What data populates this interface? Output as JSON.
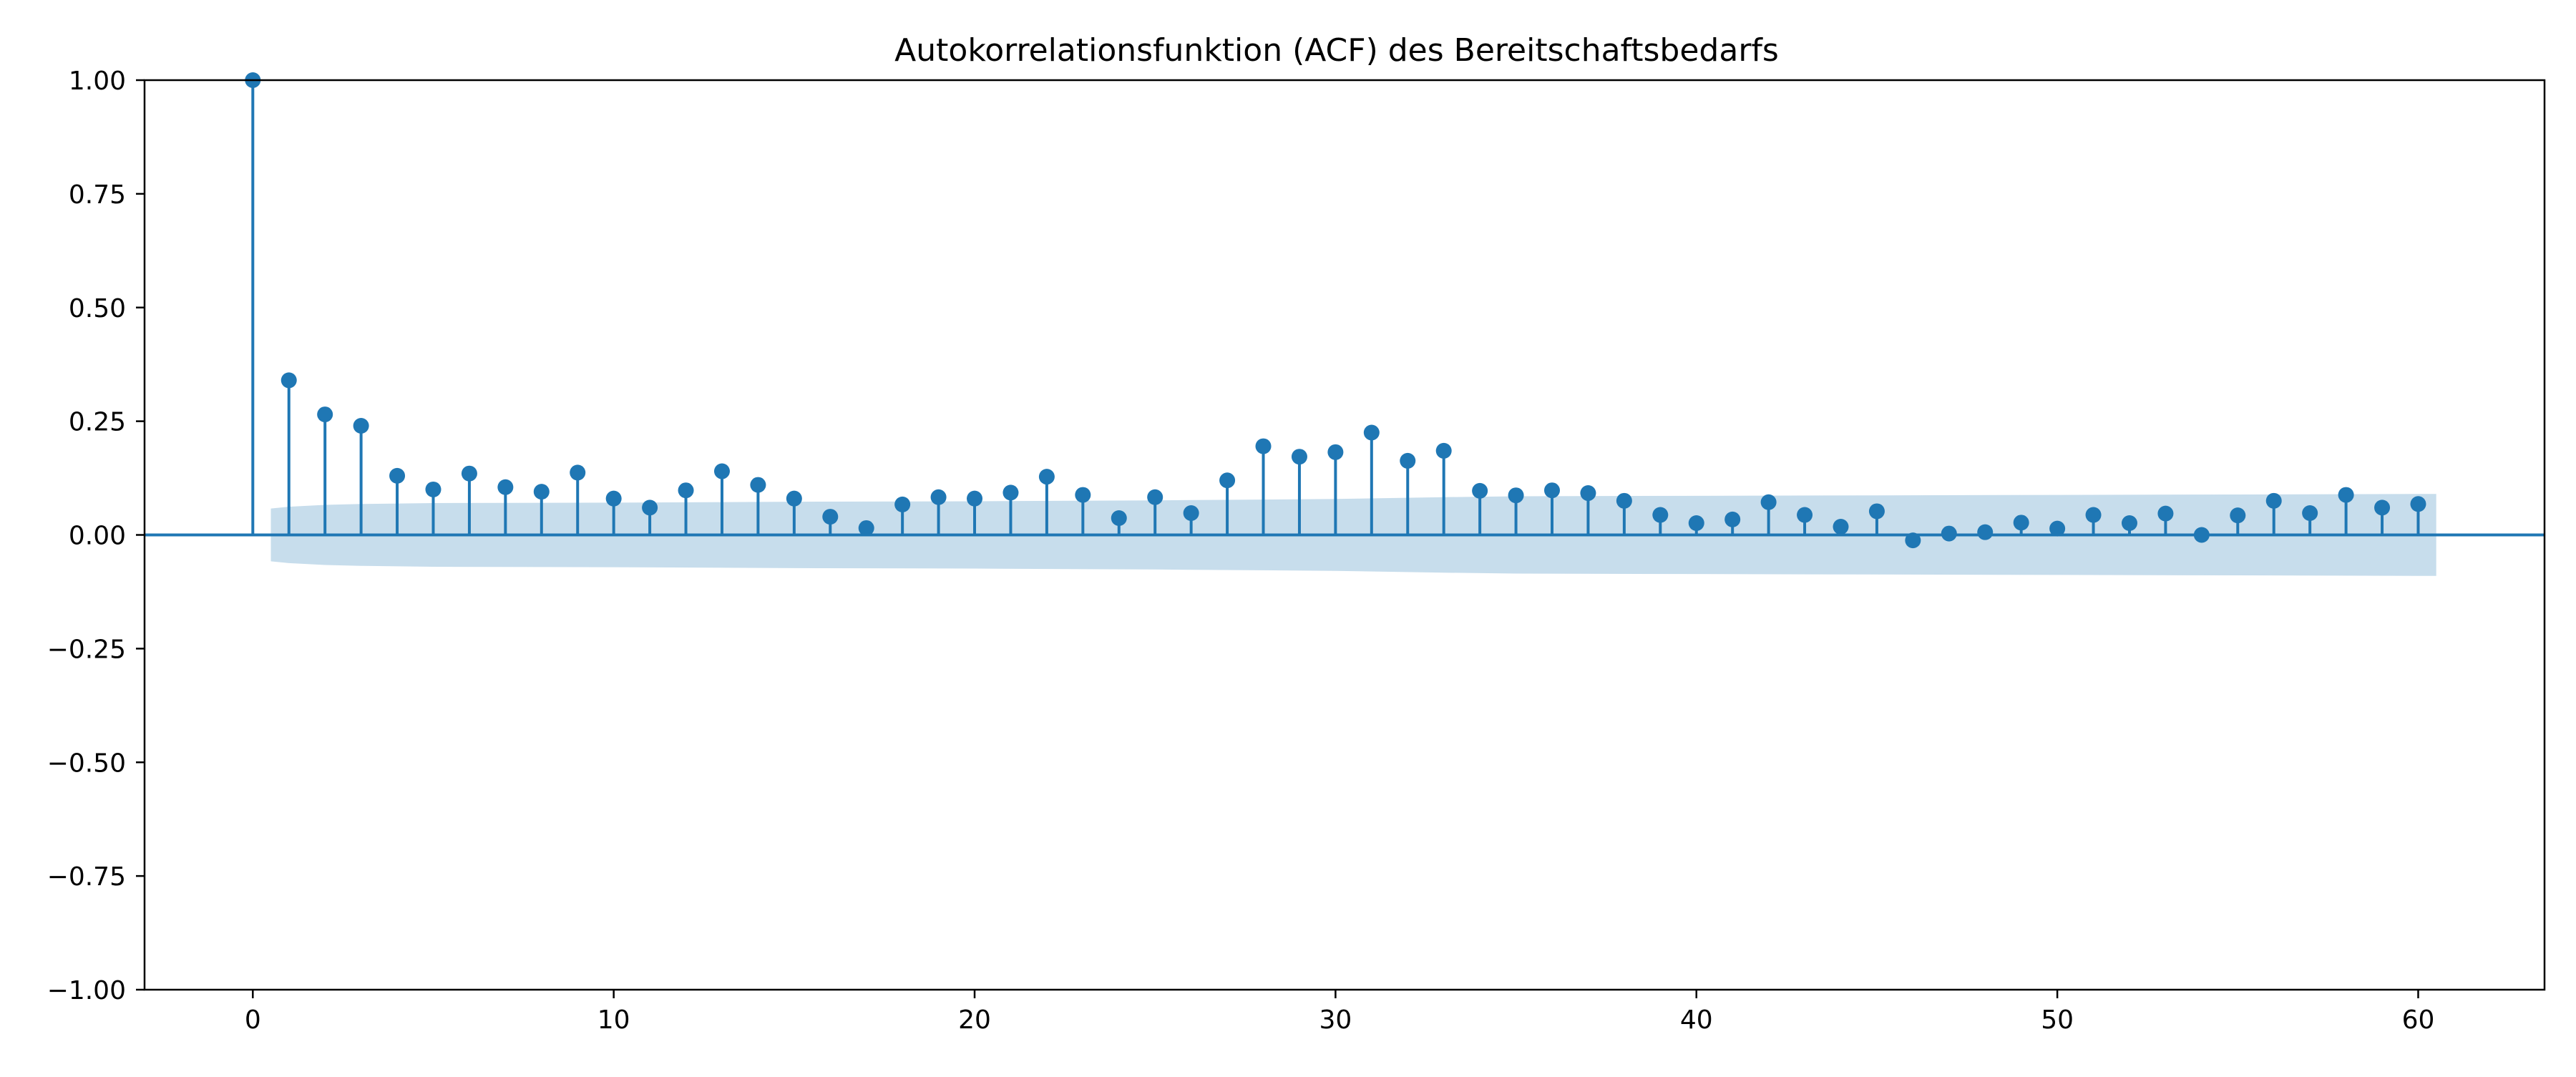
{
  "chart_data": {
    "type": "stem",
    "title": "Autokorrelationsfunktion (ACF) des Bereitschaftsbedarfs",
    "xlabel": "",
    "ylabel": "",
    "xlim": [
      -3,
      63.5
    ],
    "ylim": [
      -1.0,
      1.0
    ],
    "xticks": [
      0,
      10,
      20,
      30,
      40,
      50,
      60
    ],
    "xtick_labels": [
      "0",
      "10",
      "20",
      "30",
      "40",
      "50",
      "60"
    ],
    "yticks": [
      1.0,
      0.75,
      0.5,
      0.25,
      0.0,
      -0.25,
      -0.5,
      -0.75,
      -1.0
    ],
    "ytick_labels": [
      "1.00",
      "0.75",
      "0.50",
      "0.25",
      "0.00",
      "−0.25",
      "−0.50",
      "−0.75",
      "−1.00"
    ],
    "grid": false,
    "lags": [
      0,
      1,
      2,
      3,
      4,
      5,
      6,
      7,
      8,
      9,
      10,
      11,
      12,
      13,
      14,
      15,
      16,
      17,
      18,
      19,
      20,
      21,
      22,
      23,
      24,
      25,
      26,
      27,
      28,
      29,
      30,
      31,
      32,
      33,
      34,
      35,
      36,
      37,
      38,
      39,
      40,
      41,
      42,
      43,
      44,
      45,
      46,
      47,
      48,
      49,
      50,
      51,
      52,
      53,
      54,
      55,
      56,
      57,
      58,
      59,
      60
    ],
    "acf": [
      1.0,
      0.34,
      0.265,
      0.24,
      0.13,
      0.1,
      0.135,
      0.105,
      0.095,
      0.137,
      0.08,
      0.06,
      0.098,
      0.14,
      0.11,
      0.08,
      0.04,
      0.015,
      0.067,
      0.083,
      0.08,
      0.093,
      0.128,
      0.088,
      0.037,
      0.083,
      0.048,
      0.12,
      0.195,
      0.172,
      0.182,
      0.225,
      0.163,
      0.185,
      0.097,
      0.087,
      0.098,
      0.092,
      0.075,
      0.044,
      0.026,
      0.034,
      0.072,
      0.044,
      0.018,
      0.052,
      -0.012,
      0.003,
      0.006,
      0.027,
      0.014,
      0.044,
      0.026,
      0.047,
      0.0,
      0.043,
      0.075,
      0.048,
      0.088,
      0.06,
      0.068
    ],
    "confidence_band": {
      "x": [
        0.5,
        1,
        2,
        3,
        5,
        10,
        15,
        20,
        25,
        30,
        33,
        35,
        40,
        45,
        50,
        55,
        60,
        60.5
      ],
      "upper": [
        0.058,
        0.062,
        0.066,
        0.068,
        0.07,
        0.071,
        0.073,
        0.074,
        0.076,
        0.079,
        0.083,
        0.085,
        0.086,
        0.087,
        0.088,
        0.089,
        0.09,
        0.09
      ]
    },
    "colors": {
      "stem": "#1f77b4",
      "band": "#1f77b4",
      "axis": "#000000"
    }
  }
}
